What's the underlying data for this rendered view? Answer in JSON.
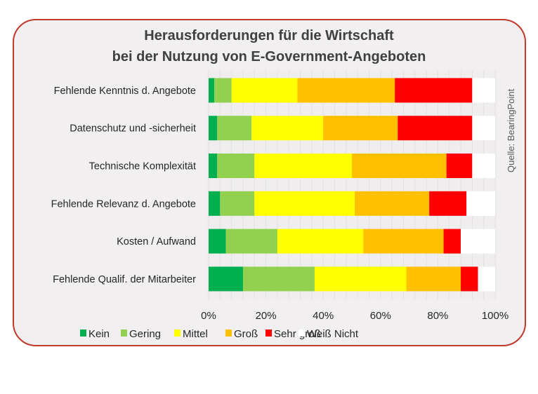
{
  "chart_data": {
    "type": "bar",
    "orientation": "horizontal",
    "stacked": "percent",
    "title": [
      "Herausforderungen für die Wirtschaft",
      "bei der Nutzung von E-Government-Angeboten"
    ],
    "source": "Quelle:  BearingPoint",
    "categories": [
      "Fehlende Kenntnis d. Angebote",
      "Datenschutz und -sicherheit",
      "Technische Komplexität",
      "Fehlende Relevanz d.  Angebote",
      "Kosten / Aufwand",
      "Fehlende Qualif. der Mitarbeiter"
    ],
    "series": [
      {
        "name": "Kein",
        "color": "#00b050",
        "values": [
          2,
          3,
          3,
          4,
          6,
          12
        ]
      },
      {
        "name": "Gering",
        "color": "#92d050",
        "values": [
          6,
          12,
          13,
          12,
          18,
          25
        ]
      },
      {
        "name": "Mittel",
        "color": "#ffff00",
        "values": [
          23,
          25,
          34,
          35,
          30,
          32
        ]
      },
      {
        "name": "Groß",
        "color": "#ffc000",
        "values": [
          34,
          26,
          33,
          26,
          28,
          19
        ]
      },
      {
        "name": "Sehr groß",
        "color": "#ff0000",
        "values": [
          27,
          26,
          9,
          13,
          6,
          6
        ]
      },
      {
        "name": "Weiß Nicht",
        "color": "#ffffff",
        "values": [
          8,
          8,
          8,
          10,
          12,
          6
        ]
      }
    ],
    "xlim": [
      0,
      100
    ],
    "xticks": [
      "0%",
      "20%",
      "40%",
      "60%",
      "80%",
      "100%"
    ],
    "grid": true,
    "legend": "bottom"
  }
}
